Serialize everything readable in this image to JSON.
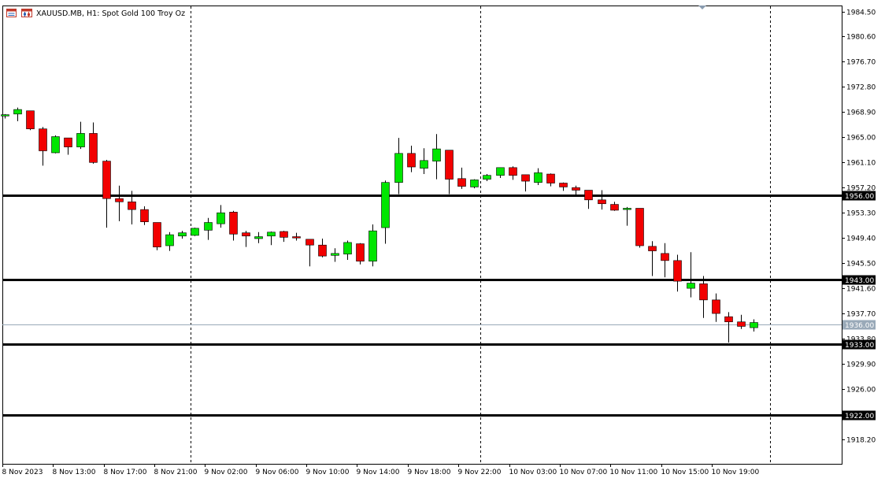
{
  "header": {
    "symbol_label": "XAUUSD.MB, H1:  Spot Gold 100 Troy Oz",
    "icons": [
      "chart-window-icon",
      "candle-chart-icon"
    ]
  },
  "colors": {
    "bull": "#00e600",
    "bear": "#f20000",
    "line": "#000000",
    "bid_line": "#99a9b8",
    "background": "#ffffff"
  },
  "chart_data": {
    "type": "candlestick",
    "timeframe": "H1",
    "ylim": [
      1915.0,
      1986.5
    ],
    "y_ticks": [
      "1984.50",
      "1980.60",
      "1976.70",
      "1972.80",
      "1968.90",
      "1965.00",
      "1961.10",
      "1957.20",
      "1953.30",
      "1949.40",
      "1945.50",
      "1941.60",
      "1937.70",
      "1933.80",
      "1929.90",
      "1926.00",
      "1918.20"
    ],
    "x_ticks": [
      "8 Nov 2023",
      "8 Nov 13:00",
      "8 Nov 17:00",
      "8 Nov 21:00",
      "9 Nov 02:00",
      "9 Nov 06:00",
      "9 Nov 10:00",
      "9 Nov 14:00",
      "9 Nov 18:00",
      "9 Nov 22:00",
      "10 Nov 03:00",
      "10 Nov 07:00",
      "10 Nov 11:00",
      "10 Nov 15:00",
      "10 Nov 19:00"
    ],
    "price_levels": [
      "1956.00",
      "1943.00",
      "1933.00",
      "1922.00"
    ],
    "bid_price": "1936.00",
    "candles": [
      {
        "o": 1968.3,
        "h": 1968.6,
        "l": 1967.9,
        "c": 1968.5
      },
      {
        "o": 1968.6,
        "h": 1969.6,
        "l": 1967.5,
        "c": 1969.3
      },
      {
        "o": 1969.1,
        "h": 1969.1,
        "l": 1966.1,
        "c": 1966.3
      },
      {
        "o": 1966.3,
        "h": 1966.6,
        "l": 1960.6,
        "c": 1962.9
      },
      {
        "o": 1962.6,
        "h": 1965.3,
        "l": 1962.5,
        "c": 1965.1
      },
      {
        "o": 1964.9,
        "h": 1964.9,
        "l": 1962.3,
        "c": 1963.5
      },
      {
        "o": 1963.5,
        "h": 1967.4,
        "l": 1963.2,
        "c": 1965.6
      },
      {
        "o": 1965.6,
        "h": 1967.3,
        "l": 1960.9,
        "c": 1961.1
      },
      {
        "o": 1961.3,
        "h": 1961.5,
        "l": 1951.0,
        "c": 1955.5
      },
      {
        "o": 1955.5,
        "h": 1957.5,
        "l": 1952.0,
        "c": 1955.0
      },
      {
        "o": 1955.0,
        "h": 1956.7,
        "l": 1951.5,
        "c": 1953.8
      },
      {
        "o": 1953.8,
        "h": 1954.3,
        "l": 1951.4,
        "c": 1951.9
      },
      {
        "o": 1951.8,
        "h": 1951.8,
        "l": 1947.5,
        "c": 1948.0
      },
      {
        "o": 1948.2,
        "h": 1950.3,
        "l": 1947.4,
        "c": 1949.9
      },
      {
        "o": 1949.7,
        "h": 1950.5,
        "l": 1949.3,
        "c": 1950.2
      },
      {
        "o": 1949.8,
        "h": 1951.0,
        "l": 1949.7,
        "c": 1950.9
      },
      {
        "o": 1950.6,
        "h": 1952.5,
        "l": 1949.1,
        "c": 1951.8
      },
      {
        "o": 1951.6,
        "h": 1954.5,
        "l": 1951.0,
        "c": 1953.3
      },
      {
        "o": 1953.4,
        "h": 1953.6,
        "l": 1949.0,
        "c": 1950.0
      },
      {
        "o": 1950.2,
        "h": 1950.5,
        "l": 1948.0,
        "c": 1949.7
      },
      {
        "o": 1949.3,
        "h": 1950.3,
        "l": 1948.6,
        "c": 1949.6
      },
      {
        "o": 1949.7,
        "h": 1950.4,
        "l": 1948.3,
        "c": 1950.3
      },
      {
        "o": 1950.4,
        "h": 1950.5,
        "l": 1948.8,
        "c": 1949.5
      },
      {
        "o": 1949.6,
        "h": 1950.2,
        "l": 1949.0,
        "c": 1949.4
      },
      {
        "o": 1949.2,
        "h": 1949.2,
        "l": 1945.0,
        "c": 1948.3
      },
      {
        "o": 1948.3,
        "h": 1949.3,
        "l": 1946.4,
        "c": 1946.6
      },
      {
        "o": 1946.7,
        "h": 1947.8,
        "l": 1945.7,
        "c": 1947.0
      },
      {
        "o": 1946.9,
        "h": 1949.0,
        "l": 1946.0,
        "c": 1948.7
      },
      {
        "o": 1948.5,
        "h": 1948.6,
        "l": 1945.3,
        "c": 1945.8
      },
      {
        "o": 1945.8,
        "h": 1951.5,
        "l": 1945.0,
        "c": 1950.5
      },
      {
        "o": 1951.0,
        "h": 1958.3,
        "l": 1948.5,
        "c": 1958.0
      },
      {
        "o": 1958.0,
        "h": 1964.9,
        "l": 1956.2,
        "c": 1962.5
      },
      {
        "o": 1962.5,
        "h": 1963.7,
        "l": 1959.6,
        "c": 1960.4
      },
      {
        "o": 1960.2,
        "h": 1963.3,
        "l": 1959.3,
        "c": 1961.4
      },
      {
        "o": 1961.3,
        "h": 1965.5,
        "l": 1958.5,
        "c": 1963.2
      },
      {
        "o": 1963.0,
        "h": 1963.0,
        "l": 1956.2,
        "c": 1958.5
      },
      {
        "o": 1958.6,
        "h": 1960.3,
        "l": 1957.0,
        "c": 1957.4
      },
      {
        "o": 1957.3,
        "h": 1958.5,
        "l": 1957.1,
        "c": 1958.4
      },
      {
        "o": 1958.5,
        "h": 1959.3,
        "l": 1958.2,
        "c": 1959.1
      },
      {
        "o": 1959.1,
        "h": 1960.3,
        "l": 1958.7,
        "c": 1960.3
      },
      {
        "o": 1960.3,
        "h": 1960.5,
        "l": 1958.4,
        "c": 1959.1
      },
      {
        "o": 1959.2,
        "h": 1959.2,
        "l": 1956.6,
        "c": 1958.2
      },
      {
        "o": 1958.0,
        "h": 1960.2,
        "l": 1957.6,
        "c": 1959.5
      },
      {
        "o": 1959.3,
        "h": 1959.4,
        "l": 1957.4,
        "c": 1957.9
      },
      {
        "o": 1957.9,
        "h": 1958.0,
        "l": 1956.7,
        "c": 1957.3
      },
      {
        "o": 1957.2,
        "h": 1957.5,
        "l": 1956.0,
        "c": 1956.8
      },
      {
        "o": 1956.8,
        "h": 1956.8,
        "l": 1953.9,
        "c": 1955.3
      },
      {
        "o": 1955.3,
        "h": 1956.8,
        "l": 1953.8,
        "c": 1954.7
      },
      {
        "o": 1954.6,
        "h": 1955.0,
        "l": 1953.6,
        "c": 1953.7
      },
      {
        "o": 1953.8,
        "h": 1954.2,
        "l": 1951.3,
        "c": 1954.0
      },
      {
        "o": 1954.0,
        "h": 1954.0,
        "l": 1947.9,
        "c": 1948.2
      },
      {
        "o": 1948.1,
        "h": 1948.9,
        "l": 1943.5,
        "c": 1947.4
      },
      {
        "o": 1947.0,
        "h": 1948.6,
        "l": 1943.3,
        "c": 1945.9
      },
      {
        "o": 1945.9,
        "h": 1946.8,
        "l": 1941.1,
        "c": 1942.7
      },
      {
        "o": 1941.6,
        "h": 1947.2,
        "l": 1940.2,
        "c": 1942.4
      },
      {
        "o": 1942.3,
        "h": 1943.5,
        "l": 1937.0,
        "c": 1939.8
      },
      {
        "o": 1939.8,
        "h": 1940.8,
        "l": 1936.4,
        "c": 1937.7
      },
      {
        "o": 1937.2,
        "h": 1937.9,
        "l": 1933.2,
        "c": 1936.4
      },
      {
        "o": 1936.4,
        "h": 1937.5,
        "l": 1935.3,
        "c": 1935.7
      },
      {
        "o": 1935.5,
        "h": 1936.8,
        "l": 1934.9,
        "c": 1936.3
      }
    ]
  }
}
